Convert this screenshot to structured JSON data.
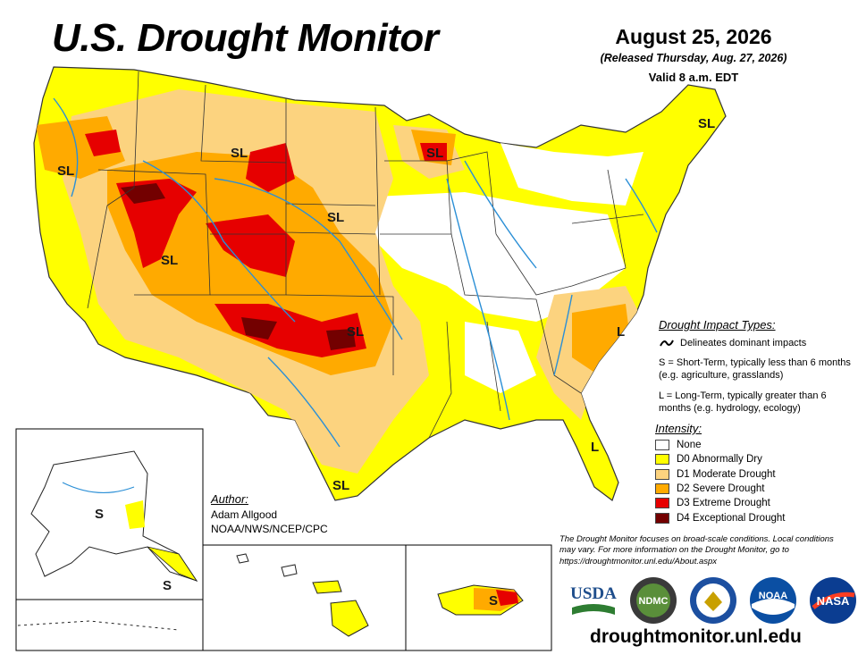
{
  "header": {
    "title": "U.S. Drought Monitor",
    "date": "August 25, 2026",
    "released": "(Released Thursday, Aug. 27, 2026)",
    "valid": "Valid 8 a.m. EDT"
  },
  "impact_types": {
    "title": "Drought Impact Types:",
    "delineates": "Delineates dominant impacts",
    "short_term": "S = Short-Term, typically less than 6 months (e.g. agriculture, grasslands)",
    "long_term": "L = Long-Term, typically greater than 6 months (e.g. hydrology, ecology)"
  },
  "intensity": {
    "title": "Intensity:",
    "levels": [
      {
        "label": "None",
        "color": "#ffffff"
      },
      {
        "label": "D0 Abnormally Dry",
        "color": "#ffff00"
      },
      {
        "label": "D1 Moderate Drought",
        "color": "#fcd37f"
      },
      {
        "label": "D2 Severe Drought",
        "color": "#ffaa00"
      },
      {
        "label": "D3 Extreme Drought",
        "color": "#e60000"
      },
      {
        "label": "D4 Exceptional Drought",
        "color": "#730000"
      }
    ]
  },
  "author": {
    "title": "Author:",
    "name": "Adam Allgood",
    "org": "NOAA/NWS/NCEP/CPC"
  },
  "disclaimer": "The Drought Monitor focuses on broad-scale conditions. Local conditions may vary. For more information on the Drought Monitor, go to https://droughtmonitor.unl.edu/About.aspx",
  "map_labels": {
    "sl": "SL",
    "s": "S",
    "l": "L"
  },
  "logos": {
    "usda": "USDA",
    "ndmc": "NDMC",
    "noaa": "NOAA",
    "nasa": "NASA"
  },
  "url": "droughtmonitor.unl.edu"
}
